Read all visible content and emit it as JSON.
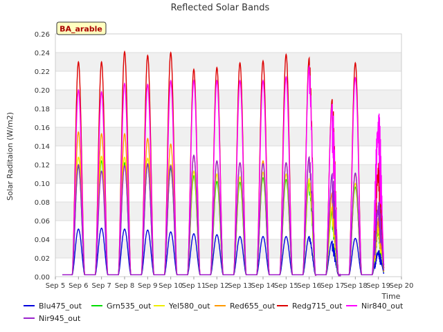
{
  "chart_data": {
    "type": "line",
    "title": "Reflected Solar Bands",
    "xlabel": "Time",
    "ylabel": "Solar Raditaion (W/m2)",
    "annotation": "BA_arable",
    "ylim": [
      0,
      0.26
    ],
    "yticks": [
      0.0,
      0.02,
      0.04,
      0.06,
      0.08,
      0.1,
      0.12,
      0.14,
      0.16,
      0.18,
      0.2,
      0.22,
      0.24,
      0.26
    ],
    "ytick_labels": [
      "0.00",
      "0.02",
      "0.04",
      "0.06",
      "0.08",
      "0.10",
      "0.12",
      "0.14",
      "0.16",
      "0.18",
      "0.20",
      "0.22",
      "0.24",
      "0.26"
    ],
    "xlim": [
      5,
      20
    ],
    "xticks": [
      5,
      6,
      7,
      8,
      9,
      10,
      11,
      12,
      13,
      14,
      15,
      16,
      17,
      18,
      19,
      20
    ],
    "xtick_labels": [
      "Sep 5",
      "Sep 6",
      "Sep 7",
      "Sep 8",
      "Sep 9",
      "Sep 10",
      "Sep 11",
      "Sep 12",
      "Sep 13",
      "Sep 14",
      "Sep 15",
      "Sep 16",
      "Sep 17",
      "Sep 18",
      "Sep 19",
      "Sep 20"
    ],
    "day_centers": [
      6.8,
      7.8,
      8.8,
      9.8,
      10.8,
      11.8,
      12.8,
      13.8,
      14.8,
      15.8,
      16.8,
      17.8,
      18.8,
      19.8
    ],
    "series": [
      {
        "name": "Blu475_out",
        "color": "#0000dd",
        "peaks": [
          0.051,
          0.052,
          0.051,
          0.05,
          0.048,
          0.046,
          0.045,
          0.043,
          0.043,
          0.043,
          0.043,
          0.038,
          0.041,
          0.03
        ]
      },
      {
        "name": "Grn535_out",
        "color": "#00dd00",
        "peaks": [
          0.118,
          0.124,
          0.122,
          0.12,
          0.116,
          0.108,
          0.102,
          0.101,
          0.106,
          0.104,
          0.1,
          0.07,
          0.096,
          0.057
        ]
      },
      {
        "name": "Yel580_out",
        "color": "#eeee00",
        "peaks": [
          0.128,
          0.129,
          0.128,
          0.127,
          0.12,
          0.113,
          0.11,
          0.107,
          0.112,
          0.11,
          0.105,
          0.075,
          0.1,
          0.06
        ]
      },
      {
        "name": "Red655_out",
        "color": "#ff9900",
        "peaks": [
          0.155,
          0.153,
          0.153,
          0.148,
          0.142,
          0.13,
          0.124,
          0.122,
          0.124,
          0.122,
          0.128,
          0.09,
          0.11,
          0.07
        ]
      },
      {
        "name": "Redg715_out",
        "color": "#dd0000",
        "peaks": [
          0.23,
          0.23,
          0.241,
          0.237,
          0.24,
          0.222,
          0.224,
          0.229,
          0.231,
          0.238,
          0.234,
          0.19,
          0.229,
          0.13
        ]
      },
      {
        "name": "Nir840_out",
        "color": "#ff00ff",
        "peaks": [
          0.2,
          0.198,
          0.207,
          0.206,
          0.21,
          0.21,
          0.21,
          0.21,
          0.21,
          0.214,
          0.225,
          0.185,
          0.213,
          0.185
        ]
      },
      {
        "name": "Nir945_out",
        "color": "#9922cc",
        "peaks": [
          0.12,
          0.113,
          0.119,
          0.121,
          0.119,
          0.13,
          0.124,
          0.122,
          0.121,
          0.122,
          0.128,
          0.11,
          0.111,
          0.085
        ]
      }
    ],
    "legend_position": "bottom"
  }
}
